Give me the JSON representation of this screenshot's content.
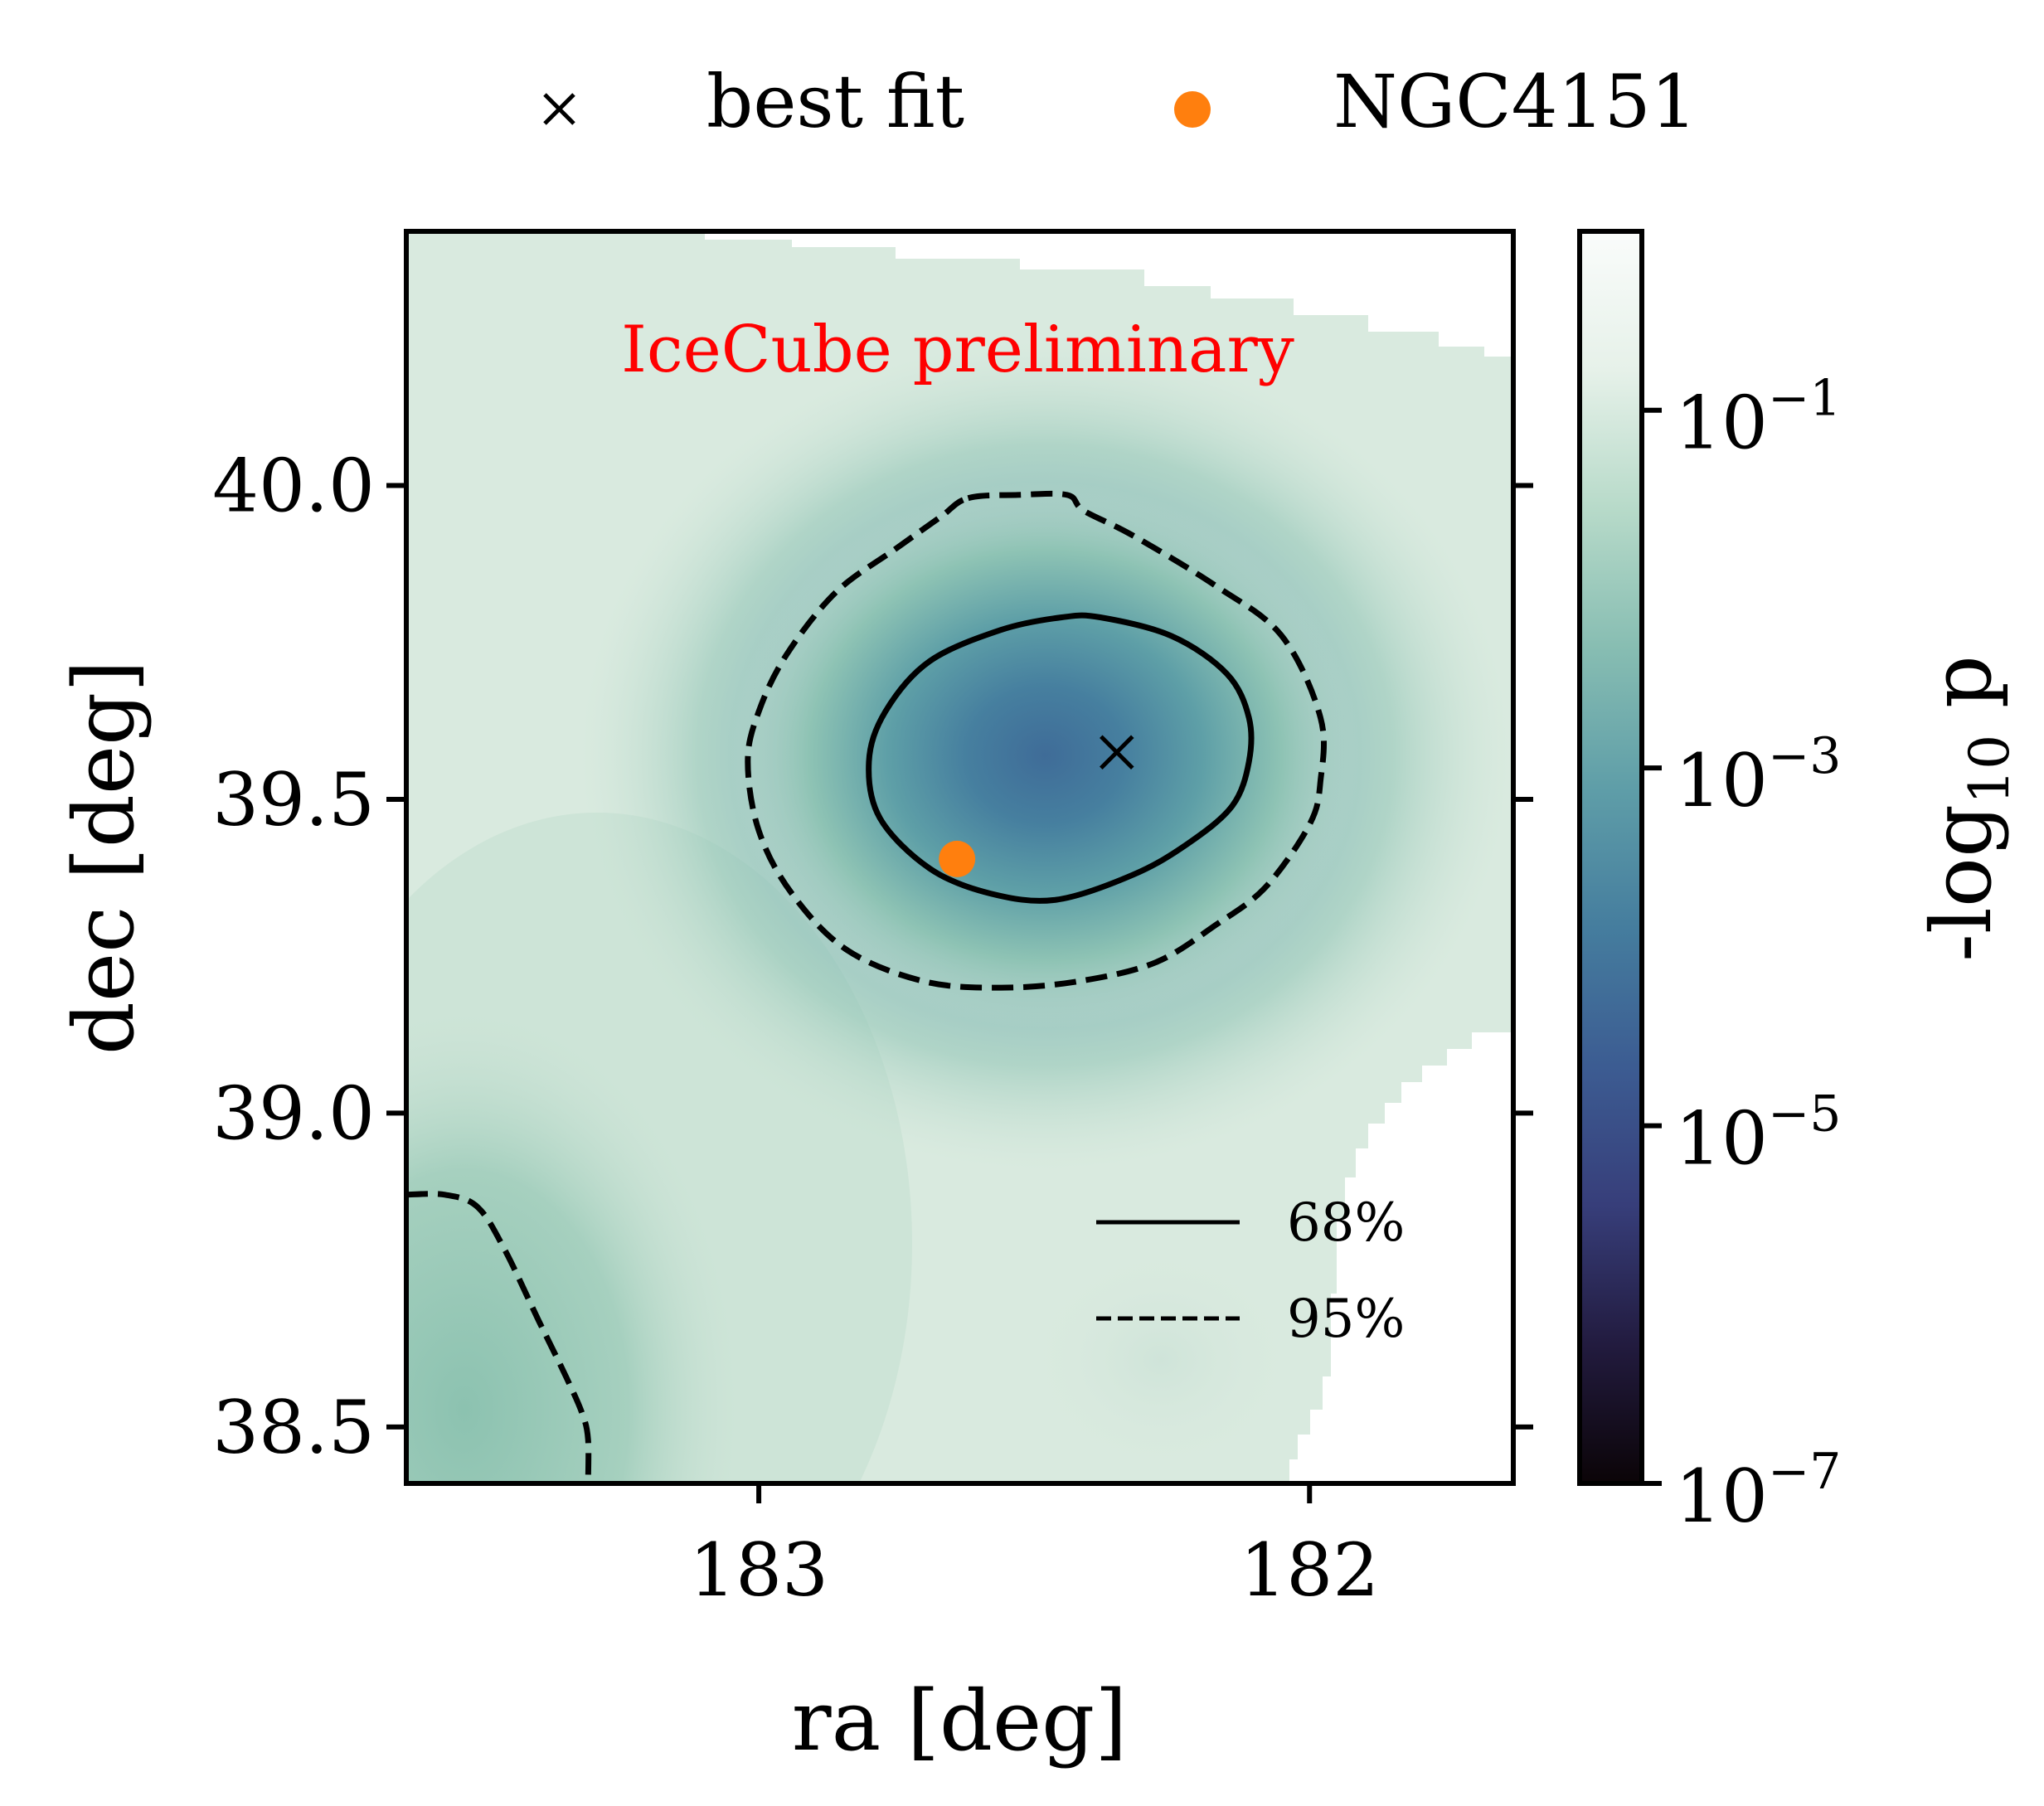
{
  "chart_data": {
    "type": "heatmap",
    "title": "",
    "watermark": "IceCube preliminary",
    "xlabel": "ra [deg]",
    "ylabel": "dec [deg]",
    "xlim": [
      183.64,
      181.63
    ],
    "ylim": [
      38.41,
      40.405
    ],
    "x_ticks": [
      183,
      182
    ],
    "x_tick_labels": [
      "183",
      "182"
    ],
    "y_ticks": [
      40.0,
      39.5,
      39.0,
      38.5
    ],
    "y_tick_labels": [
      "40.0",
      "39.5",
      "39.0",
      "38.5"
    ],
    "colorbar": {
      "label": "-log10 p",
      "label_parts": {
        "prefix": "-log",
        "sub": "10",
        "suffix": " p"
      },
      "scale": "log",
      "range_exp": [
        -7,
        0
      ],
      "ticks": [
        {
          "base": "10",
          "exp": "−1",
          "value_exp": -1
        },
        {
          "base": "10",
          "exp": "−3",
          "value_exp": -3
        },
        {
          "base": "10",
          "exp": "−5",
          "value_exp": -5
        },
        {
          "base": "10",
          "exp": "−7",
          "value_exp": -7
        }
      ],
      "colors": [
        "#0b0407",
        "#221b3f",
        "#373e7a",
        "#3c5c92",
        "#457d9e",
        "#5f9ea8",
        "#87bdb2",
        "#b7dac9",
        "#e6f1e9",
        "#fafcfb"
      ]
    },
    "hotspot": {
      "ra": 182.48,
      "dec": 39.57,
      "min_p_exp": -3.5
    },
    "best_fit": {
      "ra": 182.35,
      "dec": 39.575,
      "label": "best fit"
    },
    "source": {
      "name": "NGC4151",
      "ra": 182.64,
      "dec": 39.405,
      "color": "#ff7f0e"
    },
    "contours": [
      {
        "name": "68%",
        "style": "solid",
        "points": [
          [
            182.38,
            39.79
          ],
          [
            182.25,
            39.76
          ],
          [
            182.15,
            39.7
          ],
          [
            182.11,
            39.63
          ],
          [
            182.11,
            39.56
          ],
          [
            182.14,
            39.49
          ],
          [
            182.22,
            39.43
          ],
          [
            182.32,
            39.38
          ],
          [
            182.46,
            39.34
          ],
          [
            182.58,
            39.35
          ],
          [
            182.69,
            39.39
          ],
          [
            182.78,
            39.47
          ],
          [
            182.8,
            39.56
          ],
          [
            182.77,
            39.64
          ],
          [
            182.69,
            39.72
          ],
          [
            182.56,
            39.77
          ],
          [
            182.45,
            39.79
          ]
        ]
      },
      {
        "name": "95%",
        "style": "dashed",
        "points": [
          [
            182.62,
            39.98
          ],
          [
            182.53,
            39.985
          ],
          [
            182.44,
            39.985
          ],
          [
            182.41,
            39.96
          ],
          [
            182.32,
            39.92
          ],
          [
            182.17,
            39.84
          ],
          [
            182.05,
            39.76
          ],
          [
            181.98,
            39.63
          ],
          [
            181.98,
            39.53
          ],
          [
            182.0,
            39.46
          ],
          [
            182.08,
            39.36
          ],
          [
            182.17,
            39.3
          ],
          [
            182.28,
            39.24
          ],
          [
            182.42,
            39.21
          ],
          [
            182.56,
            39.2
          ],
          [
            182.7,
            39.21
          ],
          [
            182.84,
            39.26
          ],
          [
            182.94,
            39.35
          ],
          [
            183.0,
            39.45
          ],
          [
            183.02,
            39.56
          ],
          [
            183.0,
            39.64
          ],
          [
            182.95,
            39.73
          ],
          [
            182.86,
            39.83
          ],
          [
            182.75,
            39.9
          ],
          [
            182.67,
            39.95
          ]
        ]
      },
      {
        "name": "95%-corner",
        "style": "dashed",
        "points": [
          [
            183.64,
            38.87
          ],
          [
            183.57,
            38.87
          ],
          [
            183.51,
            38.85
          ],
          [
            183.46,
            38.78
          ],
          [
            183.4,
            38.67
          ],
          [
            183.35,
            38.58
          ],
          [
            183.32,
            38.52
          ],
          [
            183.31,
            38.48
          ],
          [
            183.31,
            38.41
          ]
        ]
      }
    ],
    "legend_top": {
      "placement": "top-center",
      "entries": [
        "best fit",
        "NGC4151"
      ]
    },
    "legend_contours": {
      "placement": "lower-right",
      "entries": [
        "68%",
        "95%"
      ]
    }
  }
}
